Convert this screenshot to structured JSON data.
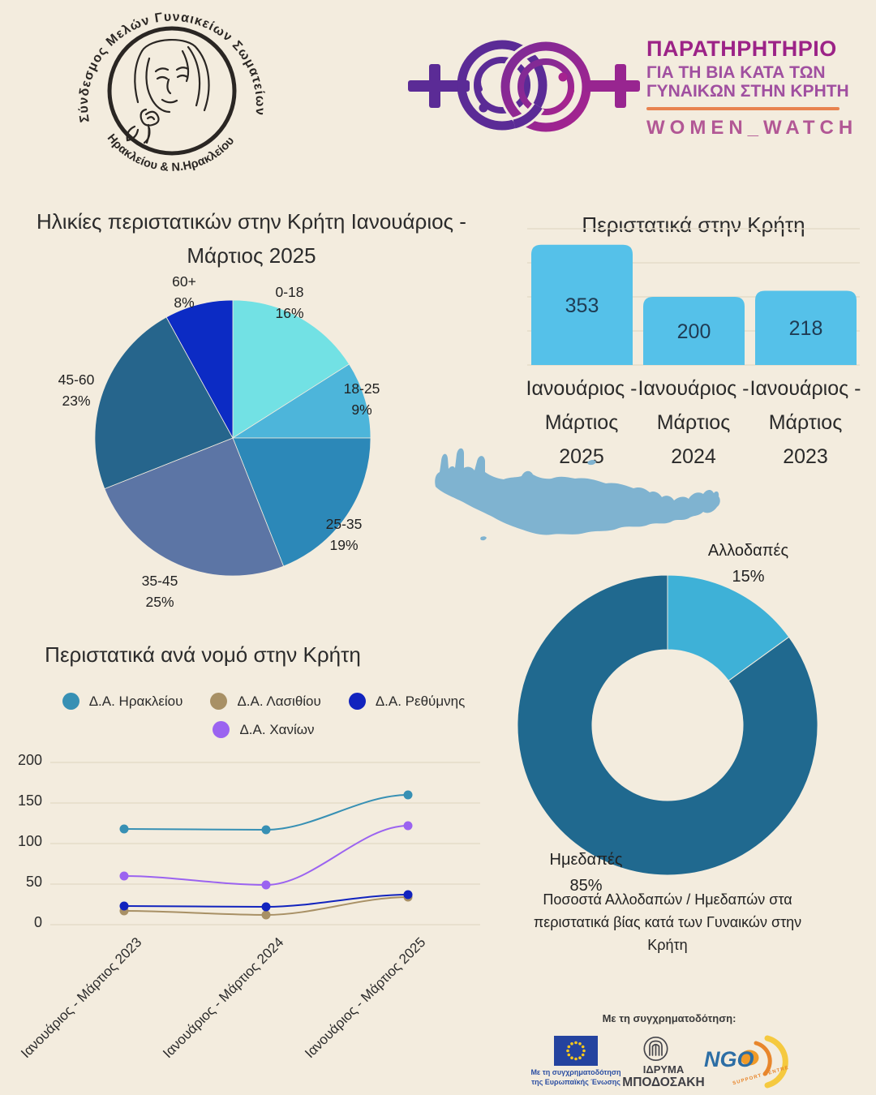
{
  "colors": {
    "background": "#F3ECDE",
    "text": "#2B2B2B",
    "grid": "#E5DCC9"
  },
  "header": {
    "association_logo": {
      "arc_top": "Σύνδεσμος Μελών Γυναικείων Σωματείων",
      "arc_bottom": "Ηρακλείου & Ν.Ηρακλείου"
    },
    "observatory_logo": {
      "title": "ΠΑΡΑΤΗΡΗΤΗΡΙΟ",
      "subtitle_line1": "ΓΙΑ ΤΗ ΒΙΑ ΚΑΤΑ ΤΩΝ",
      "subtitle_line2": "ΓΥΝΑΙΚΩΝ ΣΤΗΝ ΚΡΗΤΗ",
      "wordmark": "WOMEN_WATCH",
      "colors": {
        "title": "#9C2387",
        "subtitle": "#A04FA0",
        "rule": "#E8834F",
        "wordmark": "#B25795",
        "symbol_purple": "#5B2B96",
        "symbol_magenta": "#A6238F"
      }
    }
  },
  "chart_data": [
    {
      "type": "pie",
      "name": "ages-of-incidents",
      "title_lines": [
        "Ηλικίες περιστατικών στην Κρήτη Ιανουάριος -",
        "Μάρτιος 2025"
      ],
      "slices": [
        {
          "label": "0-18",
          "pct": "16%",
          "value": 16,
          "color": "#72E1E4"
        },
        {
          "label": "18-25",
          "pct": "9%",
          "value": 9,
          "color": "#4DB5DA"
        },
        {
          "label": "25-35",
          "pct": "19%",
          "value": 19,
          "color": "#2C88B8"
        },
        {
          "label": "35-45",
          "pct": "25%",
          "value": 25,
          "color": "#5C75A5"
        },
        {
          "label": "45-60",
          "pct": "23%",
          "value": 23,
          "color": "#26658C"
        },
        {
          "label": "60+",
          "pct": "8%",
          "value": 8,
          "color": "#0C2BC4"
        }
      ]
    },
    {
      "type": "bar",
      "name": "incidents-in-crete",
      "title": "Περιστατικά στην Κρήτη",
      "categories": [
        [
          "Ιανουάριος -",
          "Μάρτιος",
          "2025"
        ],
        [
          "Ιανουάριος -",
          "Μάρτιος",
          "2024"
        ],
        [
          "Ιανουάριος -",
          "Μάρτιος",
          "2023"
        ]
      ],
      "values": [
        353,
        200,
        218
      ],
      "ylim": [
        0,
        400
      ],
      "bar_color": "#55C1E9",
      "value_color": "#1F3B53"
    },
    {
      "type": "line",
      "name": "incidents-per-prefecture",
      "title": "Περιστατικά ανά νομό στην Κρήτη",
      "x_labels": [
        "Ιανουάριος - Μάρτιος 2023",
        "Ιανουάριος - Μάρτιος 2024",
        "Ιανουάριος - Μάρτιος 2025"
      ],
      "y_ticks": [
        0,
        50,
        100,
        150,
        200
      ],
      "ylim": [
        0,
        200
      ],
      "series": [
        {
          "name": "Δ.Α. Ηρακλείου",
          "color": "#3790B4",
          "values": [
            118,
            117,
            160
          ]
        },
        {
          "name": "Δ.Α. Λασιθίου",
          "color": "#A89065",
          "values": [
            17,
            12,
            34
          ]
        },
        {
          "name": "Δ.Α. Ρεθύμνης",
          "color": "#1123BE",
          "values": [
            23,
            22,
            37
          ]
        },
        {
          "name": "Δ.Α. Χανίων",
          "color": "#9B63F0",
          "values": [
            60,
            49,
            122
          ]
        }
      ]
    },
    {
      "type": "donut",
      "name": "nationality-share",
      "slices": [
        {
          "label": "Αλλοδαπές",
          "pct": "15%",
          "value": 15,
          "color": "#3EB1D7"
        },
        {
          "label": "Ημεδαπές",
          "pct": "85%",
          "value": 85,
          "color": "#20698F"
        }
      ],
      "caption": "Ποσοστά Αλλοδαπών / Ημεδαπών στα περιστατικά βίας κατά των Γυναικών στην Κρήτη"
    }
  ],
  "map": {
    "name": "crete",
    "color": "#7FB3D0"
  },
  "footer": {
    "cofunding_label": "Με τη συγχρηματοδότηση:",
    "eu_logo": {
      "caption_line1": "Με τη συγχρηματοδότηση",
      "caption_line2": "της Ευρωπαϊκής Ένωσης",
      "flag_color": "#24439F",
      "star_color": "#F8C81C"
    },
    "bodossaki": {
      "line1": "ΙΔΡΥΜΑ",
      "line2": "ΜΠΟΔΟΣΑΚΗ"
    },
    "ngo": {
      "wordmark": "NGO",
      "sub": "SUPPORT CENTRE",
      "blue": "#2C6EA5",
      "orange": "#E8862C",
      "yellow": "#F5C93F"
    }
  }
}
